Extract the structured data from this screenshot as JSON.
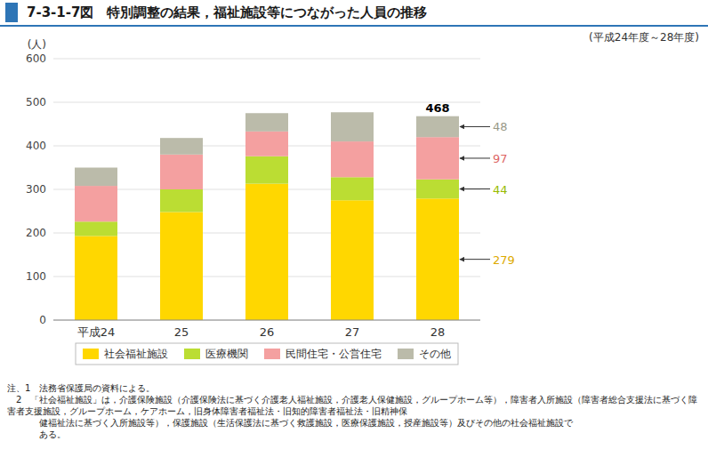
{
  "chart_data": {
    "type": "bar",
    "stacked": true,
    "title": "7-3-1-7図　特別調整の結果，福祉施設等につながった人員の推移",
    "subtitle": "(平成24年度～28年度)",
    "categories": [
      "平成24",
      "25",
      "26",
      "27",
      "28"
    ],
    "series": [
      {
        "name": "社会福祉施設",
        "color": "#FFD700",
        "values": [
          193,
          248,
          313,
          275,
          279
        ]
      },
      {
        "name": "医療機関",
        "color": "#BBDD33",
        "values": [
          33,
          52,
          63,
          53,
          44
        ]
      },
      {
        "name": "民間住宅・公営住宅",
        "color": "#F4A0A0",
        "values": [
          82,
          80,
          57,
          82,
          97
        ]
      },
      {
        "name": "その他",
        "color": "#BBBBAA",
        "values": [
          42,
          38,
          42,
          67,
          48
        ]
      }
    ],
    "ylabel": "(人)",
    "ylim": [
      0,
      600
    ],
    "yticks": [
      0,
      100,
      200,
      300,
      400,
      500,
      600
    ],
    "grid": true,
    "legend": "bottom",
    "annotations": [
      {
        "category": "28",
        "value": 468
      },
      {
        "category": "28",
        "series": "その他",
        "value": 48,
        "color": "#999988"
      },
      {
        "category": "28",
        "series": "民間住宅・公営住宅",
        "value": 97,
        "color": "#DD6666"
      },
      {
        "category": "28",
        "series": "医療機関",
        "value": 44,
        "color": "#99BB00"
      },
      {
        "category": "28",
        "series": "社会福祉施設",
        "value": 279,
        "color": "#DDAA00"
      }
    ],
    "notes": [
      "注、1　法務省保護局の資料による。",
      "　2　「社会福祉施設」は，介護保険施設（介護保険法に基づく介護老人福祉施設，介護老人保健施設，グループホーム等），障害者入所施設（障害者総合支援法に基づく障害者支援施設，グループホーム，ケアホーム，旧身体障害者福祉法・旧知的障害者福祉法・旧精神保",
      "健福祉法に基づく入所施設等），保護施設（生活保護法に基づく救護施設，医療保護施設，授産施設等）及びその他の社会福祉施設で",
      "ある。"
    ]
  }
}
